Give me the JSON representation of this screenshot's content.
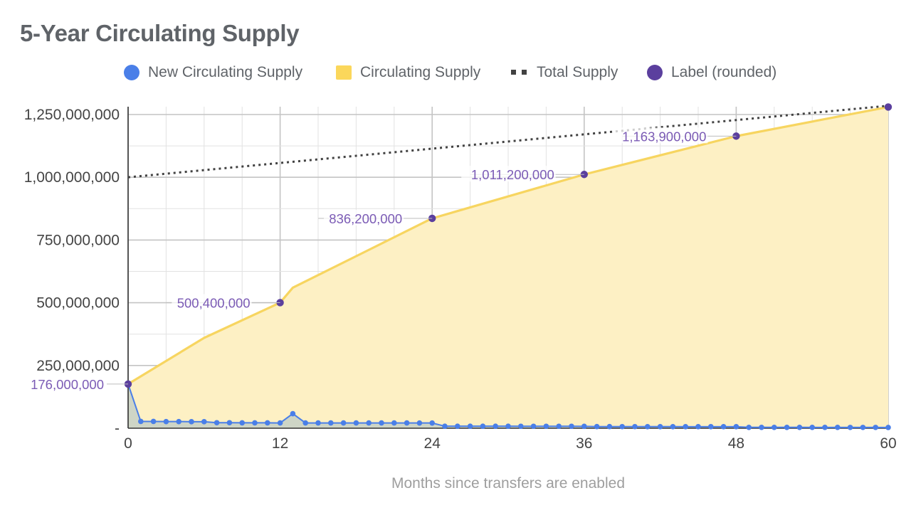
{
  "chart_data": {
    "type": "line",
    "title": "5-Year Circulating Supply",
    "xlabel": "Months since transfers are enabled",
    "ylabel": "",
    "xlim": [
      0,
      60
    ],
    "ylim": [
      0,
      1280000000
    ],
    "x_ticks": [
      "0",
      "12",
      "24",
      "36",
      "48",
      "60"
    ],
    "y_ticks": [
      "-",
      "250,000,000",
      "500,000,000",
      "750,000,000",
      "1,000,000,000",
      "1,250,000,000"
    ],
    "grid": true,
    "legend_position": "top",
    "legend": [
      {
        "name": "New Circulating Supply",
        "symbol": "circle",
        "color": "#4a7fe8"
      },
      {
        "name": "Circulating Supply",
        "symbol": "square",
        "color": "#fbd75b"
      },
      {
        "name": "Total Supply",
        "symbol": "dots",
        "color": "#424242"
      },
      {
        "name": "Label (rounded)",
        "symbol": "circle",
        "color": "#5b3f9e"
      }
    ],
    "series": [
      {
        "name": "New Circulating Supply",
        "x": [
          0,
          1,
          2,
          3,
          4,
          5,
          6,
          7,
          8,
          9,
          10,
          11,
          12,
          13,
          14,
          15,
          16,
          17,
          18,
          19,
          20,
          21,
          22,
          23,
          24,
          25,
          26,
          27,
          28,
          29,
          30,
          31,
          32,
          33,
          34,
          35,
          36,
          37,
          38,
          39,
          40,
          41,
          42,
          43,
          44,
          45,
          46,
          47,
          48,
          49,
          50,
          51,
          52,
          53,
          54,
          55,
          56,
          57,
          58,
          59,
          60
        ],
        "values": [
          176000000,
          27000000,
          27000000,
          26500000,
          26500000,
          26000000,
          26000000,
          22000000,
          22000000,
          21500000,
          21500000,
          21500000,
          21000000,
          58000000,
          21000000,
          21000000,
          21000000,
          21000000,
          21000000,
          21000000,
          21000000,
          21000000,
          21000000,
          20800000,
          20800000,
          8000000,
          8000000,
          8000000,
          8000000,
          8000000,
          8000000,
          7800000,
          7800000,
          7800000,
          7800000,
          7800000,
          7600000,
          6500000,
          6500000,
          6400000,
          6400000,
          6300000,
          6300000,
          6300000,
          6200000,
          6200000,
          6200000,
          6100000,
          6100000,
          3500000,
          3500000,
          3400000,
          3400000,
          3400000,
          3300000,
          3300000,
          3300000,
          3200000,
          3200000,
          3200000,
          3000000
        ]
      },
      {
        "name": "Circulating Supply",
        "x": [
          0,
          6,
          12,
          13,
          24,
          36,
          48,
          60
        ],
        "values": [
          176000000,
          360000000,
          500400000,
          560000000,
          836200000,
          1011200000,
          1163900000,
          1280000000
        ]
      },
      {
        "name": "Total Supply",
        "x": [
          0,
          60
        ],
        "values": [
          1000000000,
          1285000000
        ]
      },
      {
        "name": "Label (rounded)",
        "x": [
          0,
          12,
          24,
          36,
          48,
          60
        ],
        "values": [
          176000000,
          500400000,
          836200000,
          1011200000,
          1163900000,
          1280000000
        ]
      }
    ],
    "data_labels": [
      {
        "x": 0,
        "text": "176,000,000"
      },
      {
        "x": 12,
        "text": "500,400,000"
      },
      {
        "x": 24,
        "text": "836,200,000"
      },
      {
        "x": 36,
        "text": "1,011,200,000"
      },
      {
        "x": 48,
        "text": "1,163,900,000"
      }
    ],
    "colors": {
      "new_supply": "#4a7fe8",
      "circ_line": "#f7d560",
      "circ_fill": "#fdf0c4",
      "new_fill": "#c9d1c6",
      "total": "#424242",
      "label": "#5b3f9e",
      "label_text": "#7b5bb5",
      "grid": "#d6d6d6",
      "axis_text": "#444444"
    }
  }
}
